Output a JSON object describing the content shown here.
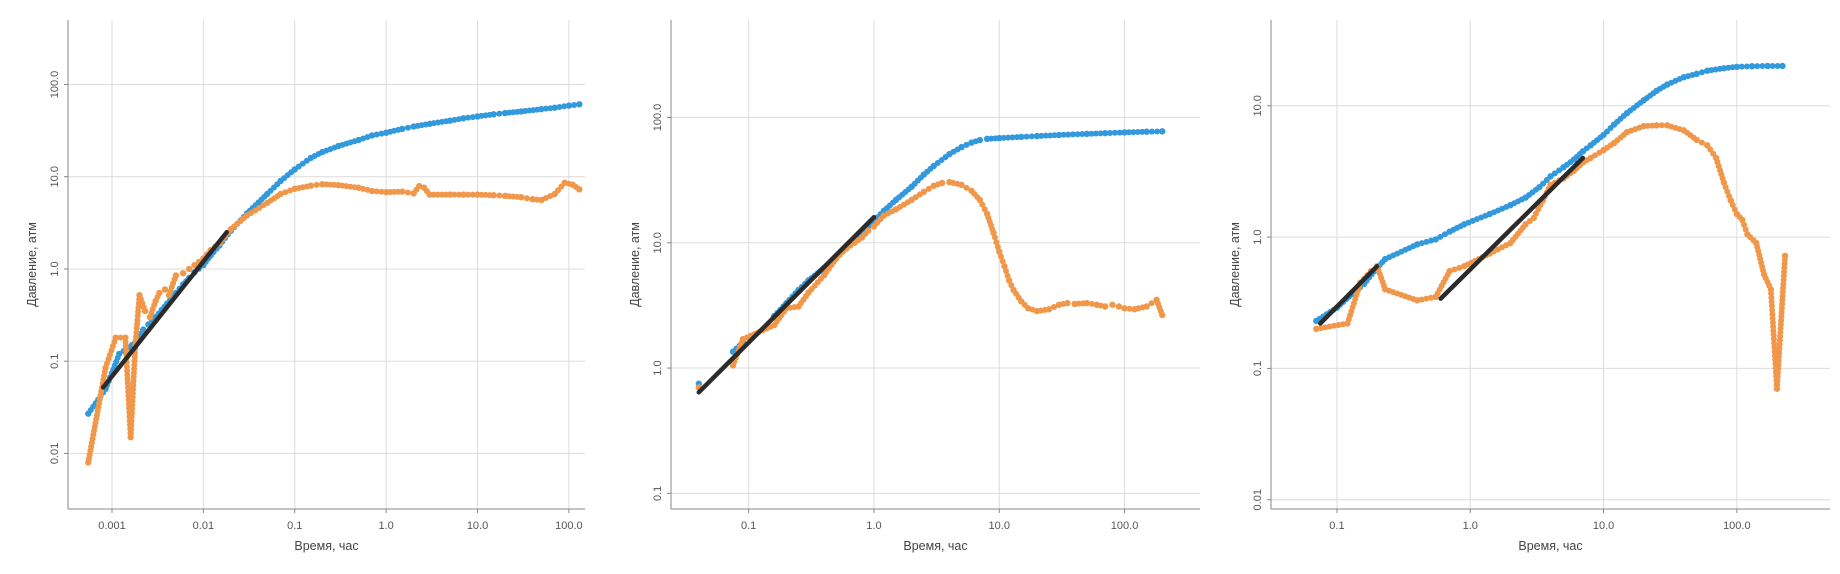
{
  "colors": {
    "series_blue": "#3399dd",
    "series_orange": "#f0974a",
    "fit_line": "#2b2b2b",
    "grid": "#dcdcdc",
    "axis": "#888888",
    "text": "#555555"
  },
  "chart_data": [
    {
      "type": "scatter",
      "xscale": "log",
      "yscale": "log",
      "xlabel": "Время, час",
      "ylabel": "Давление, атм",
      "xlim": [
        0.00033,
        150
      ],
      "ylim": [
        0.0025,
        500
      ],
      "xticks": [
        0.001,
        0.01,
        0.1,
        1.0,
        10.0,
        100.0
      ],
      "xtick_labels": [
        "0.001",
        "0.01",
        "0.1",
        "1.0",
        "10.0",
        "100.0"
      ],
      "yticks": [
        0.01,
        0.1,
        1.0,
        10.0,
        100.0
      ],
      "ytick_labels": [
        "0.01",
        "0.1",
        "1.0",
        "10.0",
        "100.0"
      ],
      "grid": true,
      "legend": "none",
      "series": [
        {
          "color": "#3399dd",
          "kind": "points",
          "x": [
            0.00055,
            0.00085,
            0.0012,
            0.0015,
            0.0018,
            0.0022,
            0.0025,
            0.003,
            0.0035,
            0.004,
            0.005,
            0.006,
            0.007,
            0.008,
            0.01,
            0.012,
            0.015,
            0.02,
            0.03,
            0.05,
            0.07,
            0.1,
            0.15,
            0.2,
            0.3,
            0.5,
            0.7,
            1.0,
            1.5,
            2.0,
            3.0,
            5.0,
            7.0,
            10.0,
            15.0,
            20.0,
            30.0,
            50.0,
            70.0,
            100.0,
            130.0
          ],
          "y": [
            0.027,
            0.05,
            0.12,
            0.14,
            0.16,
            0.22,
            0.25,
            0.3,
            0.36,
            0.42,
            0.55,
            0.68,
            0.8,
            0.92,
            1.1,
            1.4,
            1.8,
            2.6,
            4.0,
            6.5,
            9.0,
            12.0,
            16.0,
            18.5,
            21.5,
            25.0,
            28.0,
            30.0,
            33.0,
            35.0,
            37.5,
            40.5,
            43.0,
            45.0,
            47.5,
            49.0,
            51.0,
            54.0,
            56.0,
            59.0,
            61.0
          ]
        },
        {
          "color": "#f0974a",
          "kind": "points",
          "x": [
            0.00055,
            0.00085,
            0.0011,
            0.0014,
            0.0016,
            0.0018,
            0.002,
            0.0023,
            0.0026,
            0.003,
            0.0033,
            0.0038,
            0.0042,
            0.005,
            0.006,
            0.007,
            0.008,
            0.01,
            0.012,
            0.015,
            0.02,
            0.03,
            0.05,
            0.07,
            0.1,
            0.15,
            0.2,
            0.3,
            0.5,
            0.7,
            1.0,
            1.5,
            2.0,
            2.3,
            2.6,
            3.0,
            5.0,
            7.0,
            10.0,
            15.0,
            20.0,
            30.0,
            40.0,
            50.0,
            70.0,
            90.0,
            110.0,
            130.0
          ],
          "y": [
            0.008,
            0.085,
            0.18,
            0.18,
            0.015,
            0.15,
            0.52,
            0.35,
            0.3,
            0.45,
            0.55,
            0.6,
            0.52,
            0.85,
            0.9,
            1.0,
            1.1,
            1.3,
            1.6,
            1.9,
            2.7,
            3.8,
            5.2,
            6.5,
            7.4,
            8.0,
            8.3,
            8.1,
            7.6,
            7.0,
            6.8,
            6.9,
            6.6,
            7.9,
            7.6,
            6.4,
            6.4,
            6.4,
            6.4,
            6.3,
            6.2,
            6.0,
            5.7,
            5.6,
            6.5,
            8.6,
            8.2,
            7.3
          ]
        },
        {
          "color": "#2b2b2b",
          "kind": "line",
          "x": [
            0.0008,
            0.018
          ],
          "y": [
            0.052,
            2.5
          ]
        }
      ]
    },
    {
      "type": "scatter",
      "xscale": "log",
      "yscale": "log",
      "xlabel": "Время, час",
      "ylabel": "Давление, атм",
      "xlim": [
        0.024,
        400
      ],
      "ylim": [
        0.075,
        600
      ],
      "xticks": [
        0.1,
        1.0,
        10.0,
        100.0
      ],
      "xtick_labels": [
        "0.1",
        "1.0",
        "10.0",
        "100.0"
      ],
      "yticks": [
        0.1,
        1.0,
        10.0,
        100.0
      ],
      "ytick_labels": [
        "0.1",
        "1.0",
        "10.0",
        "100.0"
      ],
      "grid": true,
      "legend": "none",
      "series": [
        {
          "color": "#3399dd",
          "kind": "points",
          "x": [
            0.04,
            0.075,
            0.09,
            0.16,
            0.2,
            0.25,
            0.3,
            0.4,
            0.5,
            0.6,
            0.7,
            0.8,
            0.9,
            1.0,
            1.2,
            1.5,
            2.0,
            2.5,
            3.0,
            4.0,
            5.0,
            6.0,
            7.0,
            8.0,
            10.0,
            15.0,
            20.0,
            30.0,
            50.0,
            70.0,
            100.0,
            150.0,
            200.0
          ],
          "y": [
            0.75,
            1.35,
            1.6,
            2.6,
            3.3,
            4.2,
            5.0,
            6.3,
            7.8,
            9.0,
            10.5,
            12.0,
            13.5,
            15.0,
            18.0,
            22.0,
            28.0,
            35.0,
            41.0,
            51.0,
            58.0,
            63.0,
            66.0,
            67.5,
            68.5,
            70.0,
            71.0,
            72.5,
            74.0,
            75.0,
            76.0,
            77.0,
            77.5
          ]
        },
        {
          "color": "#f0974a",
          "kind": "points",
          "x": [
            0.04,
            0.075,
            0.09,
            0.16,
            0.2,
            0.25,
            0.3,
            0.4,
            0.5,
            0.6,
            0.7,
            0.8,
            0.9,
            1.0,
            1.2,
            1.5,
            2.0,
            2.5,
            3.0,
            3.5,
            4.0,
            5.0,
            6.0,
            7.0,
            8.0,
            9.0,
            10.0,
            11.0,
            12.0,
            13.0,
            15.0,
            17.0,
            20.0,
            25.0,
            30.0,
            35.0,
            40.0,
            50.0,
            60.0,
            70.0,
            80.0,
            90.0,
            100.0,
            120.0,
            150.0,
            180.0,
            200.0
          ],
          "y": [
            0.7,
            1.05,
            1.7,
            2.2,
            3.0,
            3.1,
            4.0,
            5.5,
            7.5,
            9.0,
            10.0,
            11.0,
            12.5,
            13.5,
            16.5,
            18.5,
            22.0,
            25.5,
            28.5,
            30.0,
            30.5,
            29.0,
            26.0,
            22.0,
            17.0,
            12.0,
            8.5,
            6.5,
            5.0,
            4.2,
            3.4,
            3.0,
            2.85,
            2.95,
            3.2,
            3.3,
            3.25,
            3.3,
            3.2,
            3.1,
            3.2,
            3.1,
            3.0,
            2.95,
            3.1,
            3.5,
            2.65
          ]
        },
        {
          "color": "#2b2b2b",
          "kind": "line",
          "x": [
            0.04,
            1.0
          ],
          "y": [
            0.64,
            16.0
          ]
        }
      ]
    },
    {
      "type": "scatter",
      "xscale": "log",
      "yscale": "log",
      "xlabel": "Время, час",
      "ylabel": "Давление, атм",
      "xlim": [
        0.032,
        500
      ],
      "ylim": [
        0.0085,
        45
      ],
      "xticks": [
        0.1,
        1.0,
        10.0,
        100.0
      ],
      "xtick_labels": [
        "0.1",
        "1.0",
        "10.0",
        "100.0"
      ],
      "yticks": [
        0.01,
        0.1,
        1.0,
        10.0
      ],
      "ytick_labels": [
        "0.01",
        "0.1",
        "1.0",
        "10.0"
      ],
      "grid": true,
      "legend": "none",
      "series": [
        {
          "color": "#3399dd",
          "kind": "points",
          "x": [
            0.07,
            0.1,
            0.13,
            0.16,
            0.19,
            0.23,
            0.4,
            0.55,
            0.7,
            0.9,
            1.4,
            2.0,
            2.6,
            3.3,
            4.0,
            5.0,
            6.0,
            7.0,
            8.0,
            10.0,
            12.0,
            15.0,
            20.0,
            25.0,
            30.0,
            40.0,
            50.0,
            60.0,
            80.0,
            100.0,
            130.0,
            170.0,
            220.0
          ],
          "y": [
            0.23,
            0.29,
            0.37,
            0.44,
            0.55,
            0.68,
            0.88,
            0.96,
            1.1,
            1.25,
            1.5,
            1.75,
            2.0,
            2.4,
            2.9,
            3.4,
            3.9,
            4.5,
            5.0,
            6.0,
            7.2,
            8.8,
            11.0,
            13.0,
            14.5,
            16.5,
            17.5,
            18.5,
            19.3,
            19.8,
            20.0,
            20.1,
            20.1
          ]
        },
        {
          "color": "#f0974a",
          "kind": "points",
          "x": [
            0.07,
            0.12,
            0.15,
            0.18,
            0.2,
            0.23,
            0.4,
            0.55,
            0.7,
            0.9,
            1.4,
            2.0,
            2.6,
            3.0,
            3.5,
            4.0,
            5.0,
            6.0,
            7.0,
            8.0,
            10.0,
            12.0,
            15.0,
            20.0,
            25.0,
            30.0,
            40.0,
            50.0,
            60.0,
            70.0,
            80.0,
            90.0,
            100.0,
            110.0,
            120.0,
            140.0,
            160.0,
            180.0,
            200.0,
            230.0
          ],
          "y": [
            0.2,
            0.22,
            0.45,
            0.55,
            0.6,
            0.4,
            0.33,
            0.35,
            0.55,
            0.6,
            0.75,
            0.9,
            1.25,
            1.4,
            1.9,
            2.5,
            2.8,
            3.2,
            3.7,
            4.0,
            4.6,
            5.2,
            6.3,
            7.0,
            7.1,
            7.1,
            6.5,
            5.5,
            5.0,
            4.0,
            2.6,
            1.9,
            1.5,
            1.35,
            1.05,
            0.9,
            0.52,
            0.4,
            0.07,
            0.72
          ]
        },
        {
          "color": "#2b2b2b",
          "kind": "line",
          "x": [
            0.075,
            0.2
          ],
          "y": [
            0.22,
            0.6
          ]
        },
        {
          "color": "#2b2b2b",
          "kind": "line",
          "x": [
            0.6,
            7.0
          ],
          "y": [
            0.34,
            4.0
          ]
        }
      ]
    }
  ]
}
